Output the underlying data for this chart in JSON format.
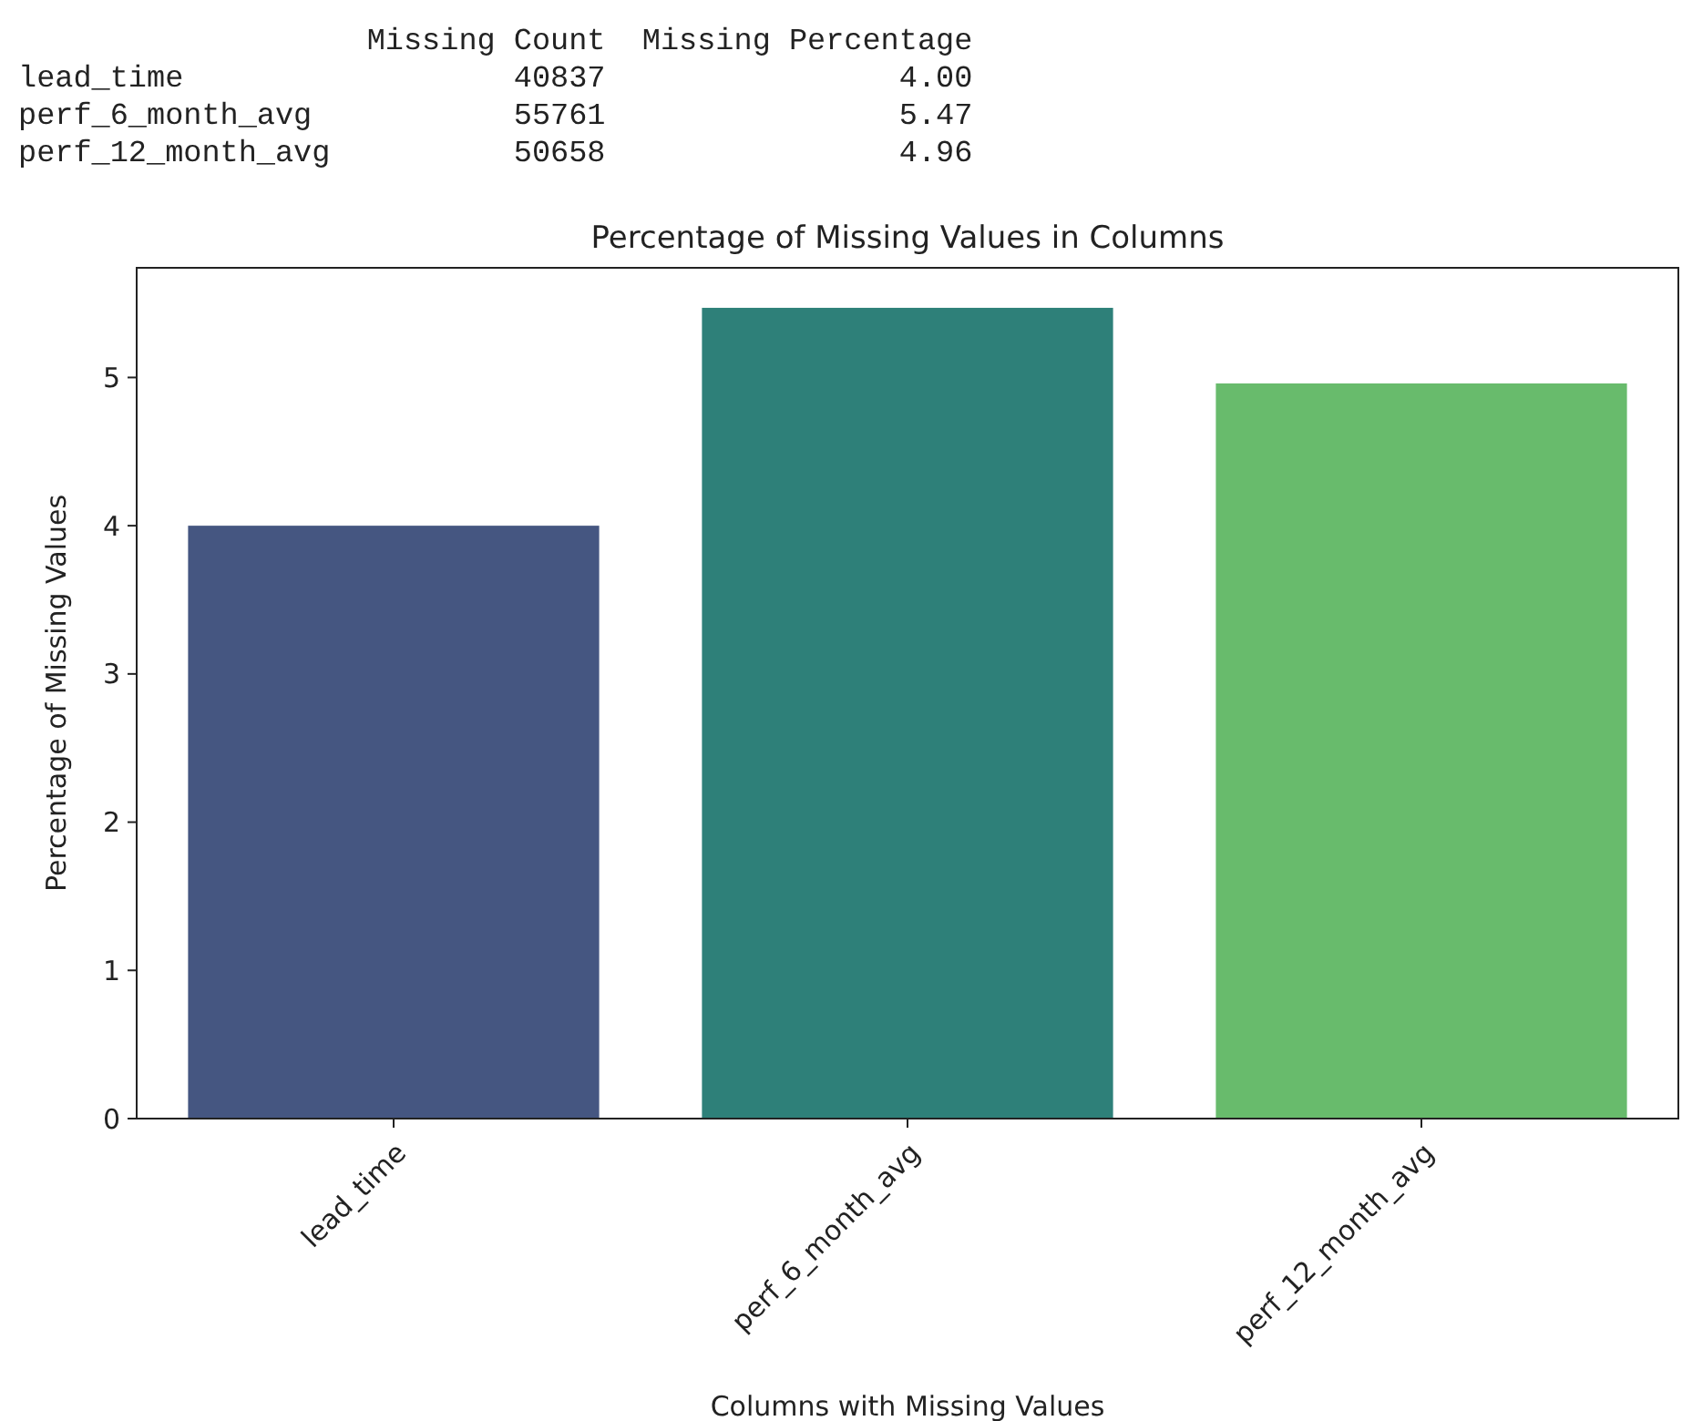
{
  "chart_data": {
    "type": "bar",
    "title": "Percentage of Missing Values in Columns",
    "xlabel": "Columns with Missing Values",
    "ylabel": "Percentage of Missing Values",
    "categories": [
      "lead_time",
      "perf_6_month_avg",
      "perf_12_month_avg"
    ],
    "values": [
      4.0,
      5.47,
      4.96
    ],
    "colors": [
      "#455681",
      "#2e8079",
      "#68bb6c"
    ],
    "ylim": [
      0,
      5.74
    ],
    "yticks": [
      0,
      1,
      2,
      3,
      4,
      5
    ],
    "grid": false,
    "annotations": [
      "                   Missing Count  Missing Percentage",
      "lead_time                  40837                4.00",
      "perf_6_month_avg           55761                5.47",
      "perf_12_month_avg          50658                4.96"
    ]
  }
}
